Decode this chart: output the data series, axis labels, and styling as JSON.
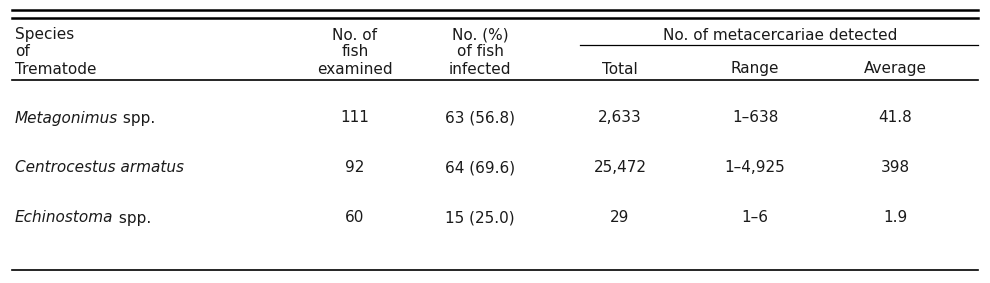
{
  "rows": [
    {
      "species_italic": "Metagonimus",
      "species_normal": " spp.",
      "no_fish": "111",
      "no_infected": "63 (56.8)",
      "total": "2,633",
      "range": "1–638",
      "average": "41.8"
    },
    {
      "species_italic": "Centrocestus armatus",
      "species_normal": "",
      "no_fish": "92",
      "no_infected": "64 (69.6)",
      "total": "25,472",
      "range": "1–4,925",
      "average": "398"
    },
    {
      "species_italic": "Echinostoma",
      "species_normal": " spp.",
      "no_fish": "60",
      "no_infected": "15 (25.0)",
      "total": "29",
      "range": "1–6",
      "average": "1.9"
    }
  ],
  "background_color": "#ffffff",
  "text_color": "#1a1a1a",
  "font_size": 11.0,
  "figwidth": 9.9,
  "figheight": 2.83,
  "dpi": 100
}
